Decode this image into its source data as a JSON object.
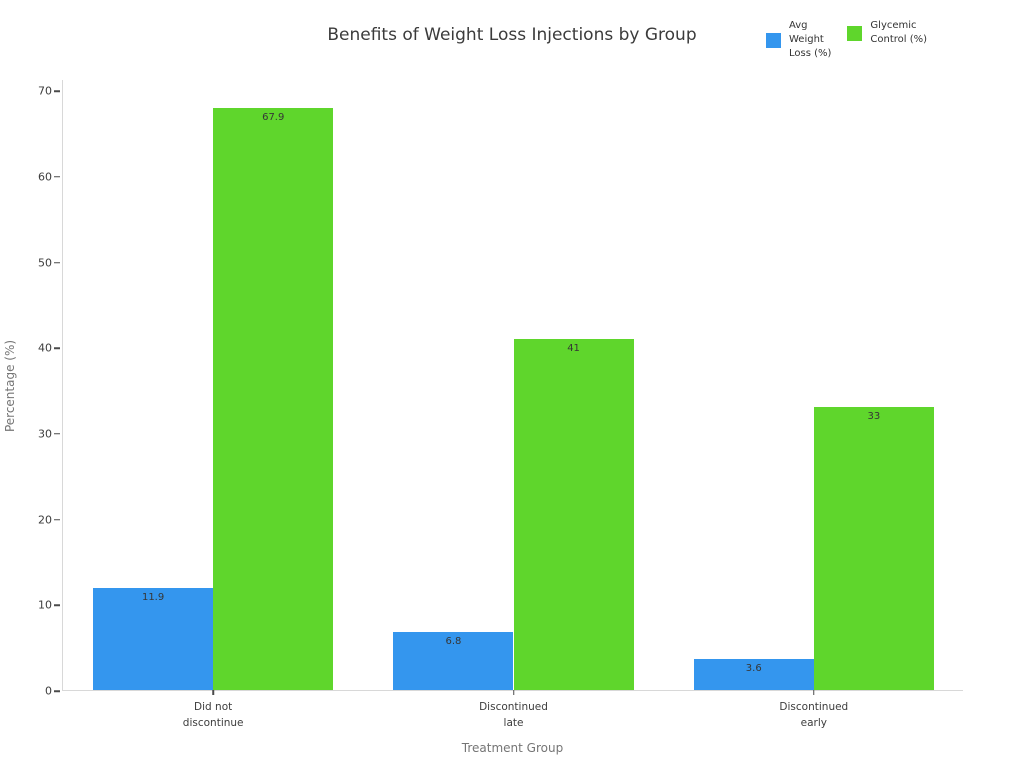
{
  "chart_data": {
    "type": "bar",
    "title": "Benefits of Weight Loss Injections by Group",
    "xlabel": "Treatment Group",
    "ylabel": "Percentage (%)",
    "categories": [
      "Did not\ndiscontinue",
      "Discontinued\nlate",
      "Discontinued\nearly"
    ],
    "series": [
      {
        "name": "Avg Weight Loss (%)",
        "legend_label": "Avg\nWeight\nLoss (%)",
        "color": "#3496ee",
        "values": [
          11.9,
          6.8,
          3.6
        ],
        "value_labels": [
          "11.9",
          "6.8",
          "3.6"
        ]
      },
      {
        "name": "Glycemic Control (%)",
        "legend_label": "Glycemic\nControl (%)",
        "color": "#5fd62c",
        "values": [
          67.9,
          41,
          33
        ],
        "value_labels": [
          "67.9",
          "41",
          "33"
        ]
      }
    ],
    "ylim": [
      0,
      71.3
    ],
    "yticks": [
      0,
      10,
      20,
      30,
      40,
      50,
      60,
      70
    ],
    "grid": false,
    "legend_position": "top-right",
    "bar_group_width_fraction": 0.8,
    "colors": {
      "title": "#3b3b3b",
      "tick_label": "#3d3d3d",
      "tick_mark": "#4a4a4a",
      "spine": "#d8d8d8",
      "axis_title": "#757575",
      "value_label": "#363636",
      "background": "#ffffff"
    }
  }
}
